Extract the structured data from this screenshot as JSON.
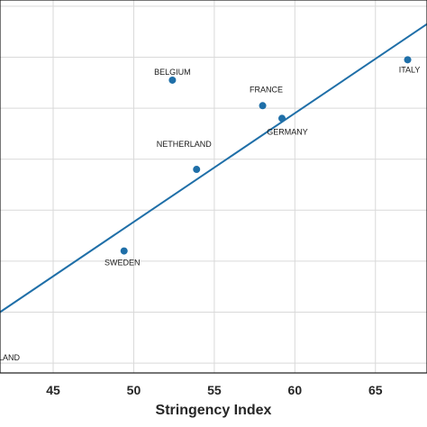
{
  "chart_data": {
    "type": "scatter",
    "xlabel": "Stringency Index",
    "ylabel": "",
    "xlim": [
      41.7,
      68.2
    ],
    "x_ticks": [
      45,
      50,
      55,
      60,
      65
    ],
    "grid": true,
    "points": [
      {
        "label": "BELGIUM",
        "x": 52.4,
        "y": 9.1
      },
      {
        "label": "FRANCE",
        "x": 58.0,
        "y": 8.1
      },
      {
        "label": "GERMANY",
        "x": 59.2,
        "y": 7.6
      },
      {
        "label": "ITALY",
        "x": 67.0,
        "y": 9.9
      },
      {
        "label": "NETHERLAND",
        "x": 53.9,
        "y": 5.6
      },
      {
        "label": "SWEDEN",
        "x": 49.4,
        "y": 2.4
      },
      {
        "label": "LAND",
        "x": 40.5,
        "y": -1.0
      }
    ],
    "fit_line": {
      "x": [
        41.7,
        68.2
      ],
      "y": [
        0.0,
        11.3
      ]
    },
    "colors": {
      "series": "#1f6fa8",
      "grid": "#d9d9d9"
    }
  }
}
